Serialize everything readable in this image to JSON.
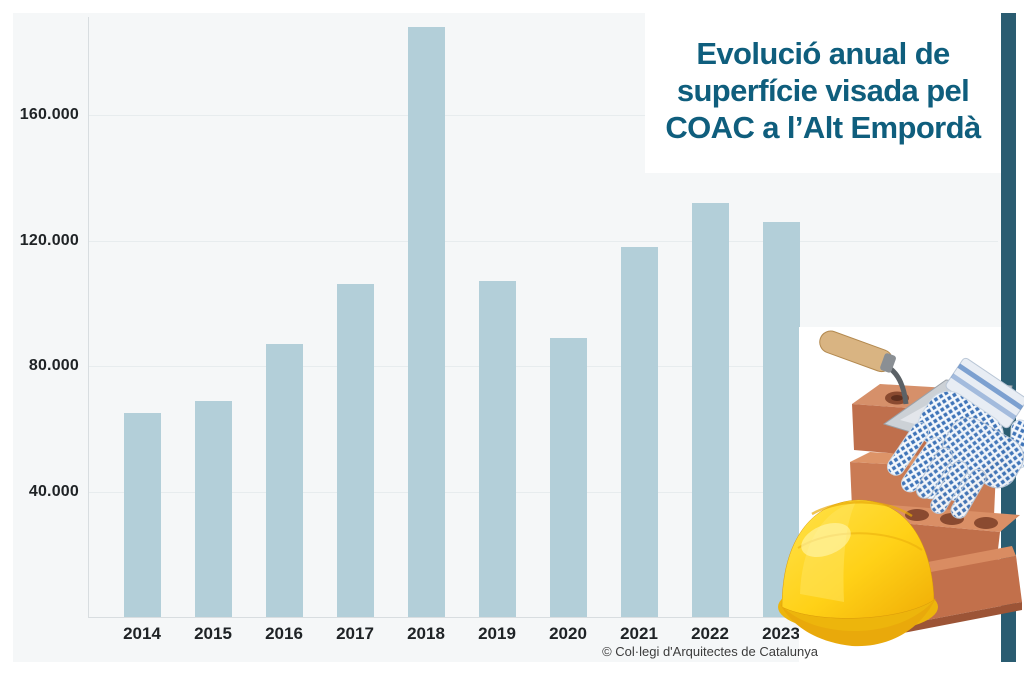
{
  "title": {
    "lines": [
      "Evolució anual de",
      "superfície visada pel",
      "COAC a l’Alt Empordà"
    ],
    "text": "Evolució anual de superfície visada pel COAC a l’Alt Empordà"
  },
  "credit": "© Col·legi d'Arquitectes de Catalunya",
  "palette": {
    "page_bg": "#ffffff",
    "panel_bg": "#f5f7f8",
    "bar": "#b3cfd9",
    "grid": "#e7ecee",
    "axis": "#d8dde0",
    "tick_text": "#1f2326",
    "title_text": "#0f5e7d",
    "stripe": "#2a5c71",
    "credit_text": "#3c3c3c",
    "helmet_yellow": "#ffd117",
    "brick": "#c47550",
    "glove_blue": "#3f74b8"
  },
  "illustration": {
    "items": [
      "bricks",
      "trowel",
      "work-gloves",
      "safety-helmet"
    ]
  },
  "chart_data": {
    "type": "bar",
    "title": "Evolució anual de superfície visada pel COAC a l’Alt Empordà",
    "categories": [
      "2014",
      "2015",
      "2016",
      "2017",
      "2018",
      "2019",
      "2020",
      "2021",
      "2022",
      "2023"
    ],
    "values": [
      65000,
      69000,
      87000,
      106000,
      188000,
      107000,
      89000,
      118000,
      132000,
      126000
    ],
    "xlabel": "",
    "ylabel": "",
    "y_ticks": [
      "40.000",
      "80.000",
      "120.000",
      "160.000"
    ],
    "y_tick_values": [
      40000,
      80000,
      120000,
      160000
    ],
    "ylim": [
      0,
      192000
    ],
    "grid": true,
    "legend": false,
    "bar_color": "#b3cfd9"
  }
}
